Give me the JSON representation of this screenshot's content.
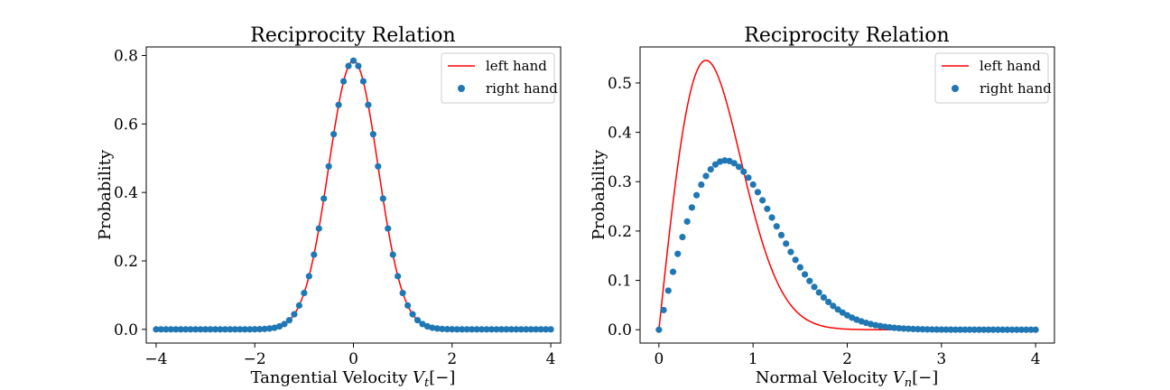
{
  "chart_data": [
    {
      "type": "line+scatter",
      "title": "Reciprocity Relation",
      "xlabel": "Tangential Velocity V_t[−]",
      "xlabel_parts": {
        "main": "Tangential Velocity ",
        "var": "V",
        "sub": "t",
        "tail": "[−]"
      },
      "ylabel": "Probability",
      "xlim": [
        -4.2,
        4.2
      ],
      "ylim": [
        -0.04,
        0.825
      ],
      "xticks": [
        -4,
        -2,
        0,
        2,
        4
      ],
      "xtick_labels": [
        "−4",
        "−2",
        "0",
        "2",
        "4"
      ],
      "yticks": [
        0.0,
        0.2,
        0.4,
        0.6,
        0.8
      ],
      "ytick_labels": [
        "0.0",
        "0.2",
        "0.4",
        "0.6",
        "0.8"
      ],
      "grid": false,
      "legend": {
        "placement": "top-right",
        "entries": [
          "left hand",
          "right hand"
        ]
      },
      "series": [
        {
          "name": "left hand",
          "kind": "line",
          "color": "#ff0000",
          "function": "gaussian",
          "params": {
            "mu": 0,
            "sigma": 0.5,
            "amplitude": 0.785
          },
          "x_range": [
            -4,
            4
          ],
          "points": 161
        },
        {
          "name": "right hand",
          "kind": "scatter",
          "color": "#1f77b4",
          "function": "gaussian",
          "params": {
            "mu": 0,
            "sigma": 0.5,
            "amplitude": 0.785
          },
          "x_range": [
            -4,
            4
          ],
          "points": 81
        }
      ]
    },
    {
      "type": "line+scatter",
      "title": "Reciprocity Relation",
      "xlabel": "Normal Velocity V_n[−]",
      "xlabel_parts": {
        "main": "Normal Velocity ",
        "var": "V",
        "sub": "n",
        "tail": "[−]"
      },
      "ylabel": "Probability",
      "xlim": [
        -0.2,
        4.2
      ],
      "ylim": [
        -0.027,
        0.573
      ],
      "xticks": [
        0,
        1,
        2,
        3,
        4
      ],
      "xtick_labels": [
        "0",
        "1",
        "2",
        "3",
        "4"
      ],
      "yticks": [
        0.0,
        0.1,
        0.2,
        0.3,
        0.4,
        0.5
      ],
      "ytick_labels": [
        "0.0",
        "0.1",
        "0.2",
        "0.3",
        "0.4",
        "0.5"
      ],
      "grid": false,
      "legend": {
        "placement": "top-right",
        "entries": [
          "left hand",
          "right hand"
        ]
      },
      "series": [
        {
          "name": "left hand",
          "kind": "line",
          "color": "#ff0000",
          "function": "rayleigh",
          "params": {
            "sigma": 0.5,
            "amplitude": 0.546
          },
          "x_range": [
            0,
            4
          ],
          "points": 201
        },
        {
          "name": "right hand",
          "kind": "scatter",
          "color": "#1f77b4",
          "function": "rayleigh",
          "params": {
            "sigma": 0.707,
            "amplitude": 0.343
          },
          "x_range": [
            0,
            4
          ],
          "points": 81
        }
      ]
    }
  ]
}
